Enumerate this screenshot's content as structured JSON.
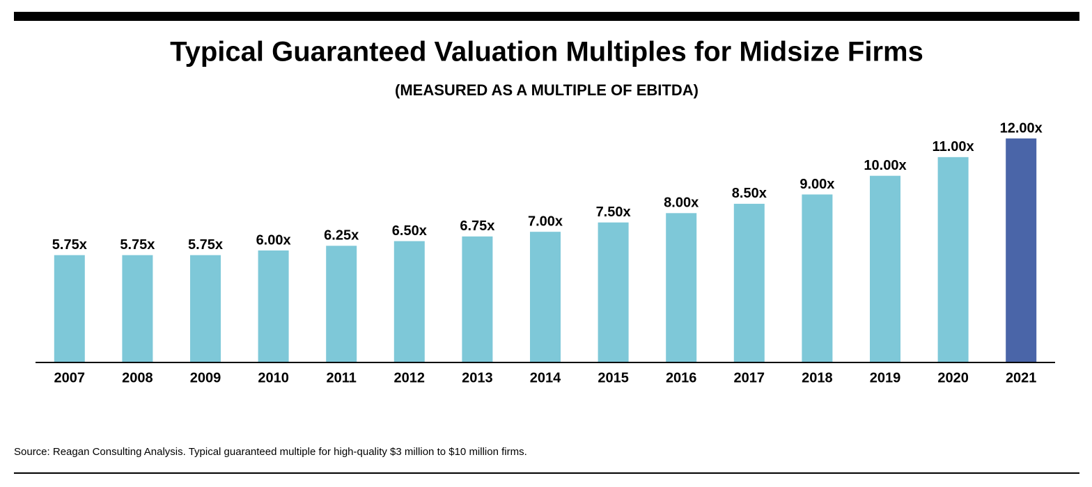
{
  "chart_data": {
    "type": "bar",
    "title": "Typical Guaranteed Valuation Multiples for Midsize Firms",
    "subtitle": "(MEASURED AS A MULTIPLE OF EBITDA)",
    "categories": [
      "2007",
      "2008",
      "2009",
      "2010",
      "2011",
      "2012",
      "2013",
      "2014",
      "2015",
      "2016",
      "2017",
      "2018",
      "2019",
      "2020",
      "2021"
    ],
    "values": [
      5.75,
      5.75,
      5.75,
      6.0,
      6.25,
      6.5,
      6.75,
      7.0,
      7.5,
      8.0,
      8.5,
      9.0,
      10.0,
      11.0,
      12.0
    ],
    "value_labels": [
      "5.75x",
      "5.75x",
      "5.75x",
      "6.00x",
      "6.25x",
      "6.50x",
      "6.75x",
      "7.00x",
      "7.50x",
      "8.00x",
      "8.50x",
      "9.00x",
      "10.00x",
      "11.00x",
      "12.00x"
    ],
    "colors": [
      "#7ec8d8",
      "#7ec8d8",
      "#7ec8d8",
      "#7ec8d8",
      "#7ec8d8",
      "#7ec8d8",
      "#7ec8d8",
      "#7ec8d8",
      "#7ec8d8",
      "#7ec8d8",
      "#7ec8d8",
      "#7ec8d8",
      "#7ec8d8",
      "#7ec8d8",
      "#4a65a8"
    ],
    "ylim": [
      0,
      12
    ],
    "source": "Source: Reagan Consulting Analysis. Typical guaranteed multiple for high-quality $3 million to $10 million firms."
  }
}
